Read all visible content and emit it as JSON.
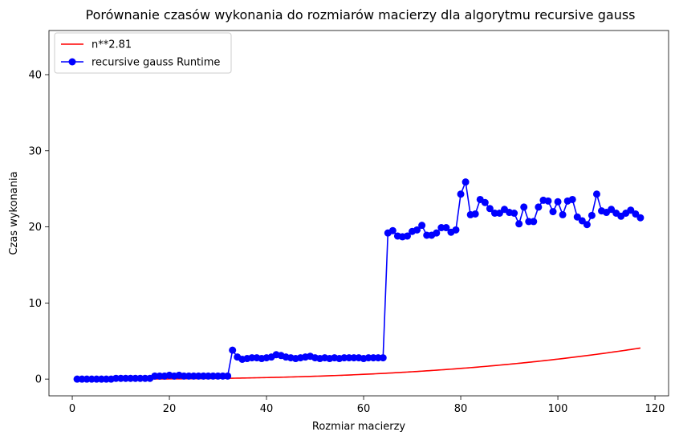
{
  "chart_data": {
    "type": "line",
    "title": "Porównanie czasów wykonania do rozmiarów macierzy dla algorytmu recursive gauss",
    "xlabel": "Rozmiar macierzy",
    "ylabel": "Czas wykonania",
    "xlim": [
      -4.8,
      122.8
    ],
    "ylim": [
      -2.2,
      45.8
    ],
    "xticks": [
      0,
      20,
      40,
      60,
      80,
      100,
      120
    ],
    "yticks": [
      0,
      10,
      20,
      30,
      40
    ],
    "legend_position": "top-left",
    "series": [
      {
        "name": "n**2.81",
        "color": "#ff0000",
        "kind": "curve",
        "formula": "n**2.81",
        "scale": 6.3e-06,
        "exponent": 2.81,
        "x_range": [
          1,
          117
        ]
      },
      {
        "name": "recursive gauss Runtime",
        "color": "#0000ff",
        "kind": "line-marker",
        "x": [
          1,
          2,
          3,
          4,
          5,
          6,
          7,
          8,
          9,
          10,
          11,
          12,
          13,
          14,
          15,
          16,
          17,
          18,
          19,
          20,
          21,
          22,
          23,
          24,
          25,
          26,
          27,
          28,
          29,
          30,
          31,
          32,
          33,
          34,
          35,
          36,
          37,
          38,
          39,
          40,
          41,
          42,
          43,
          44,
          45,
          46,
          47,
          48,
          49,
          50,
          51,
          52,
          53,
          54,
          55,
          56,
          57,
          58,
          59,
          60,
          61,
          62,
          63,
          64,
          65,
          66,
          67,
          68,
          69,
          70,
          71,
          72,
          73,
          74,
          75,
          76,
          77,
          78,
          79,
          80,
          81,
          82,
          83,
          84,
          85,
          86,
          87,
          88,
          89,
          90,
          91,
          92,
          93,
          94,
          95,
          96,
          97,
          98,
          99,
          100,
          101,
          102,
          103,
          104,
          105,
          106,
          107,
          108,
          109,
          110,
          111,
          112,
          113,
          114,
          115,
          116,
          117
        ],
        "values": [
          0.0,
          0.0,
          0.0,
          0.0,
          0.0,
          0.0,
          0.0,
          0.0,
          0.1,
          0.1,
          0.1,
          0.1,
          0.1,
          0.1,
          0.1,
          0.1,
          0.4,
          0.4,
          0.4,
          0.5,
          0.4,
          0.5,
          0.4,
          0.4,
          0.4,
          0.4,
          0.4,
          0.4,
          0.4,
          0.4,
          0.4,
          0.4,
          3.8,
          2.9,
          2.6,
          2.7,
          2.8,
          2.8,
          2.7,
          2.8,
          2.9,
          3.2,
          3.1,
          2.9,
          2.8,
          2.7,
          2.8,
          2.9,
          3.0,
          2.8,
          2.7,
          2.8,
          2.7,
          2.8,
          2.7,
          2.8,
          2.8,
          2.8,
          2.8,
          2.7,
          2.8,
          2.8,
          2.8,
          2.8,
          19.2,
          19.5,
          18.8,
          18.7,
          18.8,
          19.4,
          19.6,
          20.2,
          18.9,
          18.9,
          19.2,
          19.9,
          19.9,
          19.3,
          19.6,
          24.3,
          25.9,
          21.6,
          21.7,
          23.6,
          23.2,
          22.4,
          21.8,
          21.8,
          22.3,
          21.9,
          21.8,
          20.4,
          22.6,
          20.7,
          20.7,
          22.6,
          23.5,
          23.4,
          22.0,
          23.3,
          21.6,
          23.4,
          23.6,
          21.3,
          20.8,
          20.3,
          21.5,
          24.3,
          22.1,
          21.9,
          22.3,
          21.8,
          21.4,
          21.8,
          22.2,
          21.7,
          21.2
        ]
      }
    ]
  }
}
